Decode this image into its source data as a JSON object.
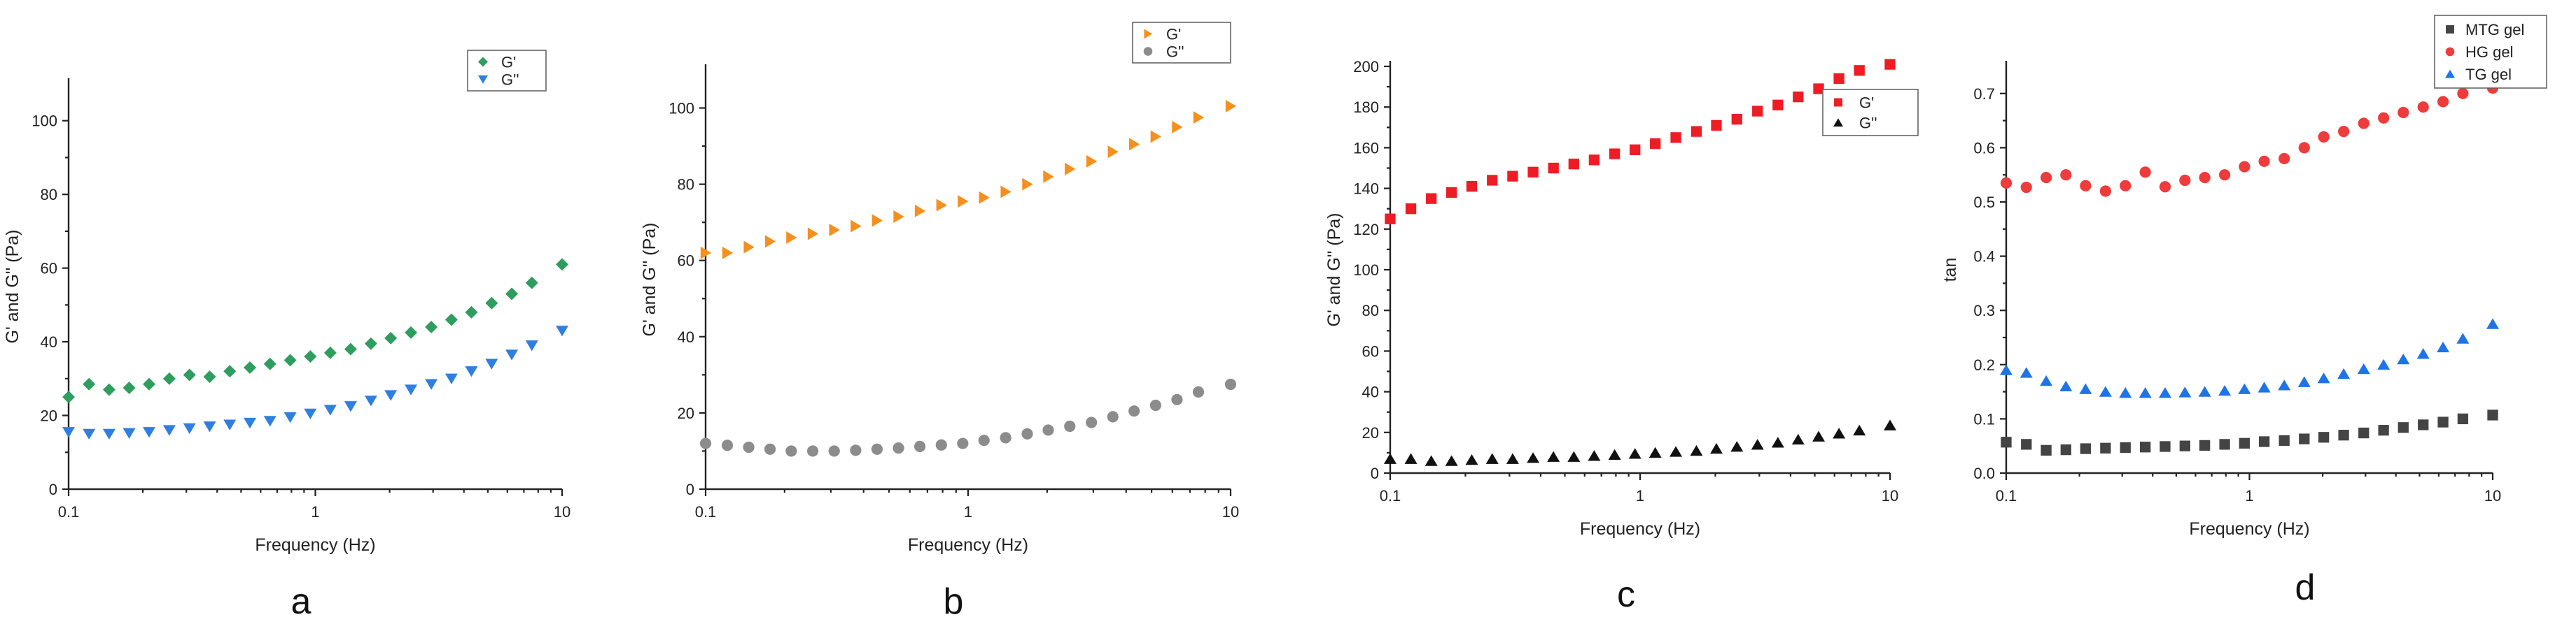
{
  "chart_data": [
    {
      "id": "a",
      "type": "scatter",
      "panel_label": "a",
      "xlabel": "Frequency (Hz)",
      "ylabel": "G' and G'' (Pa)",
      "xscale": "log",
      "xlim": [
        0.1,
        10
      ],
      "ylim": [
        0,
        110
      ],
      "x_ticks": [
        0.1,
        1,
        10
      ],
      "x_tick_labels": [
        "0.1",
        "1",
        "10"
      ],
      "y_ticks": [
        0,
        20,
        40,
        60,
        80,
        100
      ],
      "y_tick_labels": [
        "0",
        "20",
        "40",
        "60",
        "80",
        "100"
      ],
      "legend_position": "top-right",
      "x": [
        0.1,
        0.121,
        0.146,
        0.176,
        0.212,
        0.256,
        0.309,
        0.373,
        0.45,
        0.543,
        0.655,
        0.791,
        0.954,
        1.15,
        1.39,
        1.68,
        2.02,
        2.44,
        2.95,
        3.56,
        4.29,
        5.18,
        6.25,
        7.54,
        10
      ],
      "series": [
        {
          "name": "G'",
          "marker": "diamond",
          "color": "#2e9e5e",
          "values": [
            25,
            28.5,
            27,
            27.5,
            28.5,
            30,
            31,
            30.5,
            32,
            33,
            34,
            35,
            36,
            37,
            38,
            39.5,
            41,
            42.5,
            44,
            46,
            48,
            50.5,
            53,
            56,
            61
          ]
        },
        {
          "name": "G''",
          "marker": "triangle-down",
          "color": "#2f7fe0",
          "values": [
            15.5,
            15,
            15,
            15.2,
            15.5,
            16,
            16.5,
            17,
            17.5,
            18,
            18.5,
            19.5,
            20.5,
            21.5,
            22.5,
            24,
            25.5,
            27,
            28.5,
            30,
            32,
            34,
            36.5,
            39,
            43
          ]
        }
      ]
    },
    {
      "id": "b",
      "type": "scatter",
      "panel_label": "b",
      "xlabel": "Frequency (Hz)",
      "ylabel": "G' and G'' (Pa)",
      "xscale": "log",
      "xlim": [
        0.1,
        10
      ],
      "ylim": [
        0,
        110
      ],
      "x_ticks": [
        0.1,
        1,
        10
      ],
      "x_tick_labels": [
        "0.1",
        "1",
        "10"
      ],
      "y_ticks": [
        0,
        20,
        40,
        60,
        80,
        100
      ],
      "y_tick_labels": [
        "0",
        "20",
        "40",
        "60",
        "80",
        "100"
      ],
      "legend_position": "top-right",
      "x": [
        0.1,
        0.121,
        0.146,
        0.176,
        0.212,
        0.256,
        0.309,
        0.373,
        0.45,
        0.543,
        0.655,
        0.791,
        0.954,
        1.15,
        1.39,
        1.68,
        2.02,
        2.44,
        2.95,
        3.56,
        4.29,
        5.18,
        6.25,
        7.54,
        10
      ],
      "series": [
        {
          "name": "G'",
          "marker": "triangle-right",
          "color": "#f5901e",
          "values": [
            62,
            62,
            63.5,
            65,
            66,
            67,
            68,
            69,
            70.5,
            71.5,
            73,
            74.5,
            75.5,
            76.5,
            78,
            80,
            82,
            84,
            86,
            88.5,
            90.5,
            92.5,
            95,
            97.5,
            100.5
          ]
        },
        {
          "name": "G''",
          "marker": "circle",
          "color": "#8c8c8c",
          "values": [
            12,
            11.5,
            11,
            10.5,
            10,
            10,
            10,
            10.2,
            10.5,
            10.8,
            11.2,
            11.6,
            12,
            12.8,
            13.5,
            14.5,
            15.5,
            16.5,
            17.5,
            19,
            20.5,
            22,
            23.5,
            25.5,
            27.5
          ]
        }
      ]
    },
    {
      "id": "c",
      "type": "scatter",
      "panel_label": "c",
      "xlabel": "Frequency (Hz)",
      "ylabel": "G' and G'' (Pa)",
      "xscale": "log",
      "xlim": [
        0.1,
        10
      ],
      "ylim": [
        0,
        200
      ],
      "x_ticks": [
        0.1,
        1,
        10
      ],
      "x_tick_labels": [
        "0.1",
        "1",
        "10"
      ],
      "y_ticks": [
        0,
        20,
        40,
        60,
        80,
        100,
        120,
        140,
        160,
        180,
        200
      ],
      "y_tick_labels": [
        "0",
        "20",
        "40",
        "60",
        "80",
        "100",
        "120",
        "140",
        "160",
        "180",
        "200"
      ],
      "legend_position": "top-right",
      "x": [
        0.1,
        0.121,
        0.146,
        0.176,
        0.212,
        0.256,
        0.309,
        0.373,
        0.45,
        0.543,
        0.655,
        0.791,
        0.954,
        1.15,
        1.39,
        1.68,
        2.02,
        2.44,
        2.95,
        3.56,
        4.29,
        5.18,
        6.25,
        7.54,
        10
      ],
      "series": [
        {
          "name": "G'",
          "marker": "square",
          "color": "#ee1c25",
          "values": [
            125,
            130,
            135,
            138,
            141,
            144,
            146,
            148,
            150,
            152,
            154,
            157,
            159,
            162,
            165,
            168,
            171,
            174,
            178,
            181,
            185,
            189,
            194,
            198,
            201
          ]
        },
        {
          "name": "G''",
          "marker": "triangle-up",
          "color": "#111111",
          "values": [
            7,
            7,
            6,
            6,
            6.5,
            7,
            7,
            7.5,
            8,
            8,
            8.5,
            9,
            9.5,
            10,
            10.5,
            11,
            12,
            13,
            14,
            15,
            16.5,
            18,
            19.5,
            21,
            23.5
          ]
        }
      ]
    },
    {
      "id": "d",
      "type": "scatter",
      "panel_label": "d",
      "xlabel": "Frequency (Hz)",
      "ylabel": "tan",
      "xscale": "log",
      "xlim": [
        0.1,
        10
      ],
      "ylim": [
        0,
        0.75
      ],
      "x_ticks": [
        0.1,
        1,
        10
      ],
      "x_tick_labels": [
        "0.1",
        "1",
        "10"
      ],
      "y_ticks": [
        0,
        0.1,
        0.2,
        0.3,
        0.4,
        0.5,
        0.6,
        0.7
      ],
      "y_tick_labels": [
        "0.0",
        "0.1",
        "0.2",
        "0.3",
        "0.4",
        "0.5",
        "0.6",
        "0.7"
      ],
      "legend_position": "top-right",
      "x": [
        0.1,
        0.121,
        0.146,
        0.176,
        0.212,
        0.256,
        0.309,
        0.373,
        0.45,
        0.543,
        0.655,
        0.791,
        0.954,
        1.15,
        1.39,
        1.68,
        2.02,
        2.44,
        2.95,
        3.56,
        4.29,
        5.18,
        6.25,
        7.54,
        10
      ],
      "series": [
        {
          "name": "MTG gel",
          "marker": "square",
          "color": "#444444",
          "values": [
            0.057,
            0.053,
            0.042,
            0.043,
            0.045,
            0.046,
            0.047,
            0.048,
            0.049,
            0.05,
            0.051,
            0.053,
            0.055,
            0.058,
            0.06,
            0.063,
            0.066,
            0.07,
            0.074,
            0.079,
            0.084,
            0.089,
            0.094,
            0.1,
            0.107
          ]
        },
        {
          "name": "HG gel",
          "marker": "circle",
          "color": "#ee3b3b",
          "values": [
            0.535,
            0.527,
            0.545,
            0.55,
            0.53,
            0.52,
            0.53,
            0.555,
            0.528,
            0.54,
            0.545,
            0.55,
            0.565,
            0.575,
            0.58,
            0.6,
            0.62,
            0.63,
            0.645,
            0.655,
            0.665,
            0.675,
            0.685,
            0.7,
            0.71
          ]
        },
        {
          "name": "TG gel",
          "marker": "triangle-up",
          "color": "#1e74e6",
          "values": [
            0.19,
            0.185,
            0.17,
            0.16,
            0.155,
            0.15,
            0.148,
            0.148,
            0.148,
            0.149,
            0.15,
            0.152,
            0.155,
            0.158,
            0.162,
            0.168,
            0.175,
            0.183,
            0.192,
            0.2,
            0.21,
            0.22,
            0.232,
            0.248,
            0.275
          ]
        }
      ]
    }
  ]
}
